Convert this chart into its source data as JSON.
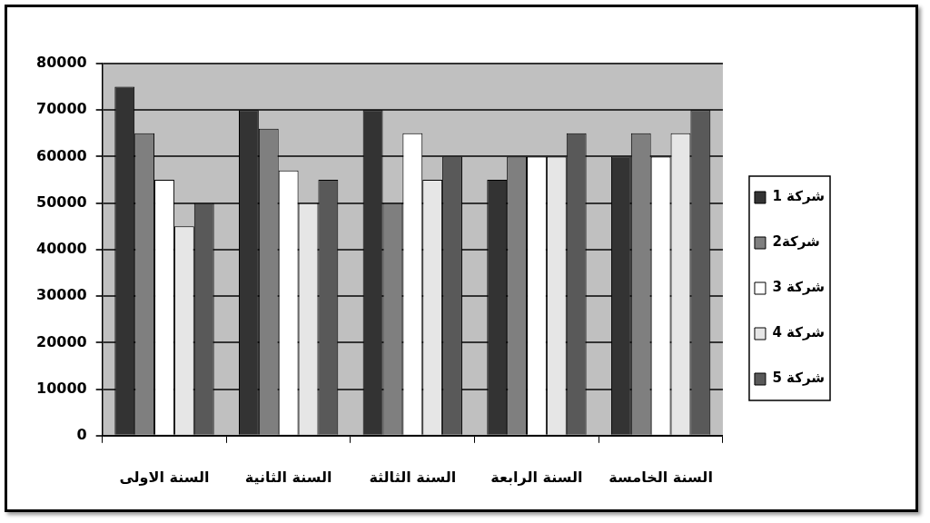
{
  "chart_data": {
    "type": "bar",
    "categories": [
      "السنة الاولى",
      "السنة الثانية",
      "السنة الثالثة",
      "السنة الرابعة",
      "السنة الخامسة"
    ],
    "series": [
      {
        "name": "شركة 1",
        "color": "#333333",
        "values": [
          75000,
          70000,
          70000,
          55000,
          60000
        ]
      },
      {
        "name": "شركة2",
        "color": "#7f7f7f",
        "values": [
          65000,
          66000,
          50000,
          60000,
          65000
        ]
      },
      {
        "name": "شركة 3",
        "color": "#ffffff",
        "values": [
          55000,
          57000,
          65000,
          60000,
          60000
        ]
      },
      {
        "name": "شركة 4",
        "color": "#e6e6e6",
        "values": [
          45000,
          50000,
          55000,
          60000,
          65000
        ]
      },
      {
        "name": "شركة 5",
        "color": "#595959",
        "values": [
          50000,
          55000,
          60000,
          65000,
          70000
        ]
      }
    ],
    "ylim": [
      0,
      80000
    ],
    "yticks": [
      0,
      10000,
      20000,
      30000,
      40000,
      50000,
      60000,
      70000,
      80000
    ],
    "grid": "y",
    "legend": "right"
  }
}
